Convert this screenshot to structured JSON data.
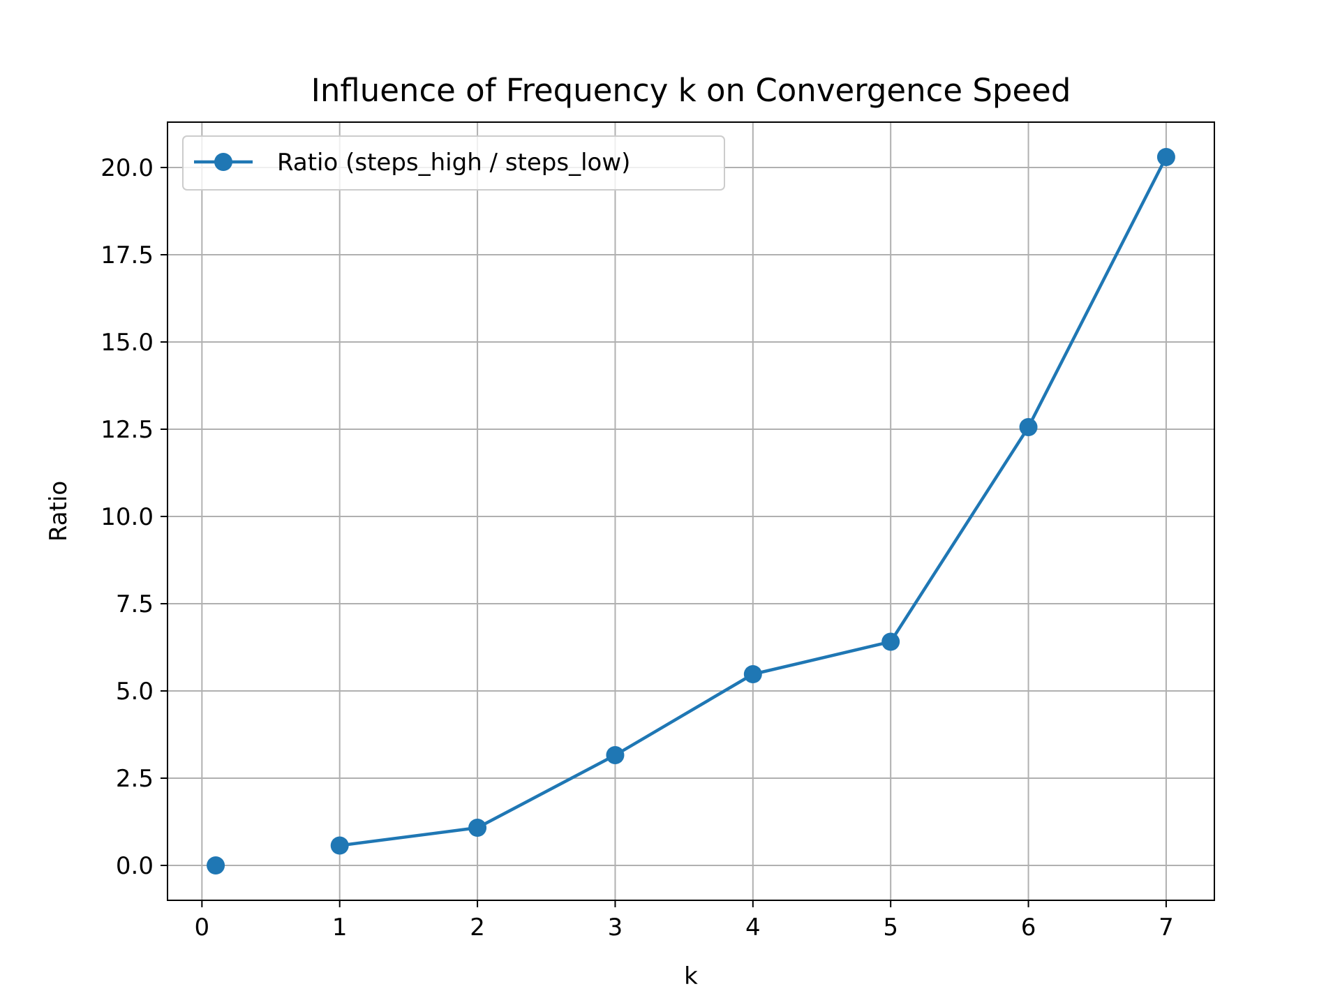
{
  "chart_data": {
    "type": "line",
    "title": "Influence of Frequency k on Convergence Speed",
    "xlabel": "k",
    "ylabel": "Ratio",
    "xlim": [
      -0.25,
      7.35
    ],
    "ylim": [
      -1.0,
      21.3
    ],
    "xticks": [
      0,
      1,
      2,
      3,
      4,
      5,
      6,
      7
    ],
    "xtick_labels": [
      "0",
      "1",
      "2",
      "3",
      "4",
      "5",
      "6",
      "7"
    ],
    "yticks": [
      0.0,
      2.5,
      5.0,
      7.5,
      10.0,
      12.5,
      15.0,
      17.5,
      20.0
    ],
    "ytick_labels": [
      "0.0",
      "2.5",
      "5.0",
      "7.5",
      "10.0",
      "12.5",
      "15.0",
      "17.5",
      "20.0"
    ],
    "grid": true,
    "legend_position": "top-left",
    "series": [
      {
        "name": "Ratio (steps_high / steps_low)",
        "color": "#1f77b4",
        "marker": "circle",
        "points": [
          {
            "x": 0.1,
            "y": 0.0
          },
          {
            "x": 1,
            "y": 0.57
          },
          {
            "x": 2,
            "y": 1.08
          },
          {
            "x": 3,
            "y": 3.16
          },
          {
            "x": 4,
            "y": 5.48
          },
          {
            "x": 5,
            "y": 6.41
          },
          {
            "x": 6,
            "y": 12.56
          },
          {
            "x": 7,
            "y": 20.3
          }
        ],
        "line_segments": [
          [
            1,
            7
          ]
        ]
      }
    ]
  }
}
